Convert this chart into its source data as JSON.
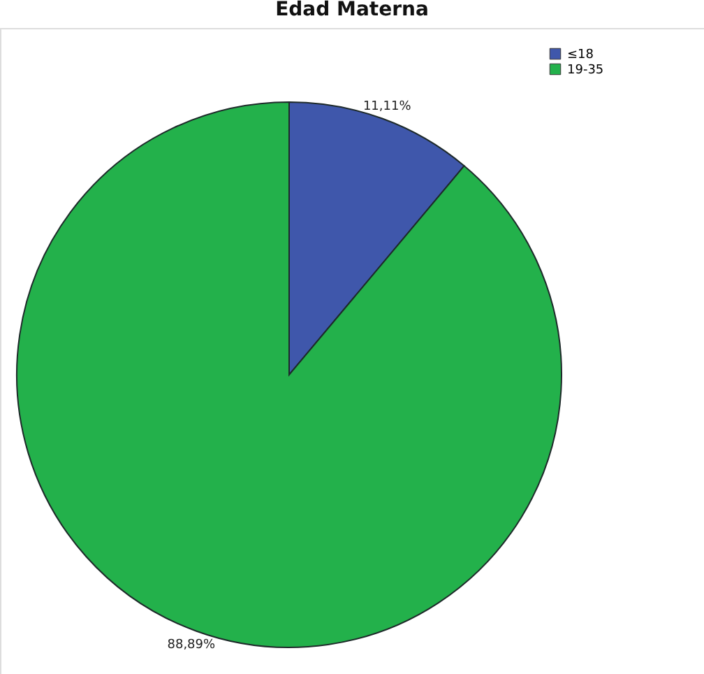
{
  "chart_data": {
    "type": "pie",
    "title": "Edad Materna",
    "categories": [
      "≤18",
      "19-35"
    ],
    "values": [
      11.11,
      88.89
    ],
    "colors": [
      "#3f57ab",
      "#23b14b"
    ],
    "value_labels": [
      "11,11%",
      "88,89%"
    ],
    "legend": "top right"
  }
}
